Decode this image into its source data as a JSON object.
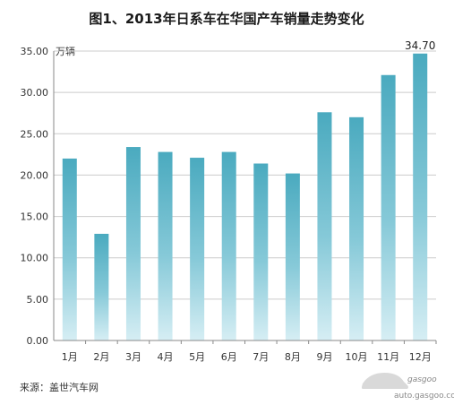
{
  "chart_data": {
    "type": "bar",
    "title": "图1、2013年日系车在华国产车销量走势变化",
    "ylabel": "万辆",
    "categories": [
      "1月",
      "2月",
      "3月",
      "4月",
      "5月",
      "6月",
      "7月",
      "8月",
      "9月",
      "10月",
      "11月",
      "12月"
    ],
    "values": [
      22.0,
      12.9,
      23.4,
      22.8,
      22.1,
      22.8,
      21.4,
      20.2,
      27.6,
      27.0,
      32.1,
      34.7
    ],
    "data_labels": {
      "12月": "34.70"
    },
    "yticks": [
      "0.00",
      "5.00",
      "10.00",
      "15.00",
      "20.00",
      "25.00",
      "30.00",
      "35.00"
    ],
    "ylim": [
      0,
      35
    ],
    "grid": true,
    "legend": "none",
    "colors": {
      "bar_top": "#4aaabf",
      "bar_bottom": "#d6eef4",
      "grid": "#cccccc",
      "axis": "#8a8a8a"
    }
  },
  "source": "来源：盖世汽车网",
  "watermark": {
    "brand": "gasgoo",
    "url": "auto.gasgoo.com"
  }
}
